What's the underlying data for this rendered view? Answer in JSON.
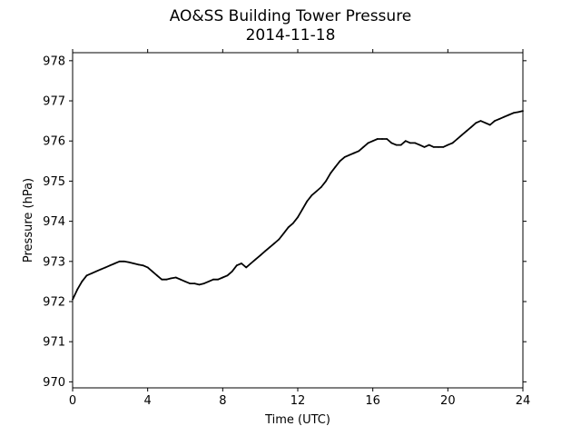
{
  "chart_data": {
    "type": "line",
    "title": "AO&SS Building Tower Pressure",
    "subtitle": "2014-11-18",
    "xlabel": "Time (UTC)",
    "ylabel": "Pressure (hPa)",
    "xlim": [
      0,
      24
    ],
    "ylim": [
      969.85,
      978.2
    ],
    "xticks": [
      0,
      4,
      8,
      12,
      16,
      20,
      24
    ],
    "yticks": [
      970,
      971,
      972,
      973,
      974,
      975,
      976,
      977,
      978
    ],
    "grid": false,
    "series": [
      {
        "color": "#000000",
        "x": [
          0.0,
          0.25,
          0.5,
          0.75,
          1.0,
          1.25,
          1.5,
          1.75,
          2.0,
          2.25,
          2.5,
          2.75,
          3.0,
          3.25,
          3.5,
          3.75,
          4.0,
          4.25,
          4.5,
          4.75,
          5.0,
          5.25,
          5.5,
          5.75,
          6.0,
          6.25,
          6.5,
          6.75,
          7.0,
          7.25,
          7.5,
          7.75,
          8.0,
          8.25,
          8.5,
          8.75,
          9.0,
          9.25,
          9.5,
          9.75,
          10.0,
          10.25,
          10.5,
          10.75,
          11.0,
          11.25,
          11.5,
          11.75,
          12.0,
          12.25,
          12.5,
          12.75,
          13.0,
          13.25,
          13.5,
          13.75,
          14.0,
          14.25,
          14.5,
          14.75,
          15.0,
          15.25,
          15.5,
          15.75,
          16.0,
          16.25,
          16.5,
          16.75,
          17.0,
          17.25,
          17.5,
          17.75,
          18.0,
          18.25,
          18.5,
          18.75,
          19.0,
          19.25,
          19.5,
          19.75,
          20.0,
          20.25,
          20.5,
          20.75,
          21.0,
          21.25,
          21.5,
          21.75,
          22.0,
          22.25,
          22.5,
          22.75,
          23.0,
          23.25,
          23.5,
          23.75,
          24.0
        ],
        "y": [
          972.05,
          972.3,
          972.5,
          972.65,
          972.7,
          972.75,
          972.8,
          972.85,
          972.9,
          972.95,
          973.0,
          973.0,
          972.98,
          972.95,
          972.92,
          972.9,
          972.85,
          972.75,
          972.65,
          972.55,
          972.55,
          972.58,
          972.6,
          972.55,
          972.5,
          972.45,
          972.45,
          972.42,
          972.45,
          972.5,
          972.55,
          972.55,
          972.6,
          972.65,
          972.75,
          972.9,
          972.95,
          972.85,
          972.95,
          973.05,
          973.15,
          973.25,
          973.35,
          973.45,
          973.55,
          973.7,
          973.85,
          973.95,
          974.1,
          974.3,
          974.5,
          974.65,
          974.75,
          974.85,
          975.0,
          975.2,
          975.35,
          975.5,
          975.6,
          975.65,
          975.7,
          975.75,
          975.85,
          975.95,
          976.0,
          976.05,
          976.05,
          976.05,
          975.95,
          975.9,
          975.9,
          976.0,
          975.95,
          975.95,
          975.9,
          975.85,
          975.9,
          975.85,
          975.85,
          975.85,
          975.9,
          975.95,
          976.05,
          976.15,
          976.25,
          976.35,
          976.45,
          976.5,
          976.45,
          976.4,
          976.5,
          976.55,
          976.6,
          976.65,
          976.7,
          976.72,
          976.75
        ]
      }
    ]
  }
}
